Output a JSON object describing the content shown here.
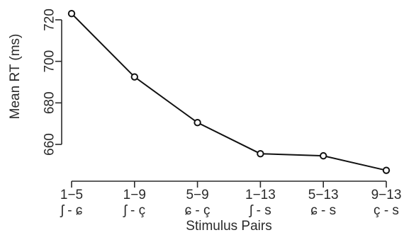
{
  "chart_data": {
    "type": "line",
    "title": "",
    "xlabel": "Stimulus Pairs",
    "ylabel": "Mean RT (ms)",
    "categories": [
      {
        "pair": "1−5",
        "symbols": "ʃ - ɕ"
      },
      {
        "pair": "1−9",
        "symbols": "ʃ - ç"
      },
      {
        "pair": "5−9",
        "symbols": "ɕ - ç"
      },
      {
        "pair": "1−13",
        "symbols": "ʃ - s"
      },
      {
        "pair": "5−13",
        "symbols": "ɕ - s"
      },
      {
        "pair": "9−13",
        "symbols": "ç - s"
      }
    ],
    "series": [
      {
        "values": [
          723,
          692.5,
          670.5,
          655.5,
          654.5,
          647.5
        ]
      }
    ],
    "ylim": [
      644,
      727
    ],
    "yticks": [
      660,
      680,
      700,
      720
    ],
    "grid": false,
    "legend": "none",
    "colors": {
      "line": "#111111",
      "marker_fill": "#ffffff",
      "axis": "#2a2a2a"
    }
  }
}
